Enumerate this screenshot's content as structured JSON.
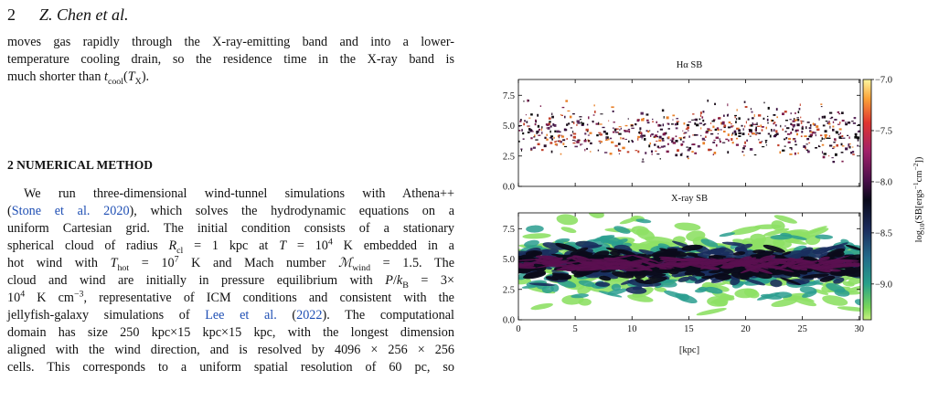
{
  "header": {
    "page_number": "2",
    "running_head": "Z. Chen et al."
  },
  "paragraph_1": {
    "lines": [
      [
        "moves gas rapidly through the X-ray-emitting band and into a lower-"
      ],
      [
        "temperature cooling drain, so the residence time in the X-ray band is"
      ],
      [
        "much shorter than ",
        {
          "i": "t"
        },
        {
          "sub": "cool"
        },
        "(",
        {
          "i": "T"
        },
        {
          "sub": "X"
        },
        ")."
      ]
    ]
  },
  "section": {
    "heading": "2 NUMERICAL METHOD",
    "lines": [
      [
        "We run three-dimensional wind-tunnel simulations with Athena++"
      ],
      [
        "(",
        {
          "link": "Stone et al. 2020"
        },
        "), which solves the hydrodynamic equations on a"
      ],
      [
        "uniform Cartesian grid. The initial condition consists of a stationary"
      ],
      [
        "spherical cloud of radius ",
        {
          "i": "R"
        },
        {
          "sub": "cl"
        },
        " = 1 kpc at ",
        {
          "i": "T"
        },
        " = 10",
        {
          "sup": "4"
        },
        " K embedded in a"
      ],
      [
        "hot wind with ",
        {
          "i": "T"
        },
        {
          "sub": "hot"
        },
        " = 10",
        {
          "sup": "7"
        },
        " K and Mach number ",
        {
          "i": "ℳ"
        },
        {
          "sub": "wind"
        },
        " = 1.5. The"
      ],
      [
        "cloud and wind are initially in pressure equilibrium with ",
        {
          "i": "P"
        },
        "/",
        {
          "i": "k"
        },
        {
          "sub": "B"
        },
        " = 3×"
      ],
      [
        "10",
        {
          "sup": "4"
        },
        " K cm",
        {
          "sup": "−3"
        },
        ", representative of ICM conditions and consistent with the"
      ],
      [
        "jellyfish-galaxy simulations of ",
        {
          "link": "Lee et al."
        },
        " (",
        {
          "link": "2022"
        },
        "). The computational"
      ],
      [
        "domain has size 250 kpc×15 kpc×15 kpc, with the longest dimension"
      ],
      [
        "aligned with the wind direction, and is resolved by 4096 × 256 × 256"
      ],
      [
        "cells. This corresponds to a uniform spatial resolution of 60 pc, so"
      ]
    ]
  },
  "figure": {
    "xlim": [
      0,
      30.1
    ],
    "xticks": [
      0,
      5,
      10,
      15,
      20,
      25,
      30
    ],
    "xlabel": "[kpc]",
    "panels": [
      {
        "title": "Hα SB",
        "ylim": [
          0,
          8.8
        ],
        "yticks": [
          {
            "value": 0,
            "label": "0.0"
          },
          2.5,
          {
            "value": 5,
            "label": "5.0"
          },
          7.5
        ]
      },
      {
        "title": "X-ray SB",
        "ylim": [
          0,
          8.8
        ],
        "yticks": [
          {
            "value": 0,
            "label": "0.0"
          },
          2.5,
          {
            "value": 5,
            "label": "5.0"
          },
          7.5
        ]
      }
    ],
    "colorbar": {
      "lim": [
        -9.35,
        -7.0
      ],
      "ticks": [
        {
          "value": -7,
          "label": "−7.0"
        },
        {
          "value": -7.5,
          "label": "−7.5"
        },
        {
          "value": -8,
          "label": "−8.0"
        },
        {
          "value": -8.5,
          "label": "−8.5"
        },
        {
          "value": -9,
          "label": "−9.0"
        }
      ],
      "label": [
        "log",
        {
          "sub": "10"
        },
        "(SB[ergs",
        {
          "sup": "−1"
        },
        "cm",
        {
          "sup": "−2"
        },
        "])"
      ]
    }
  }
}
